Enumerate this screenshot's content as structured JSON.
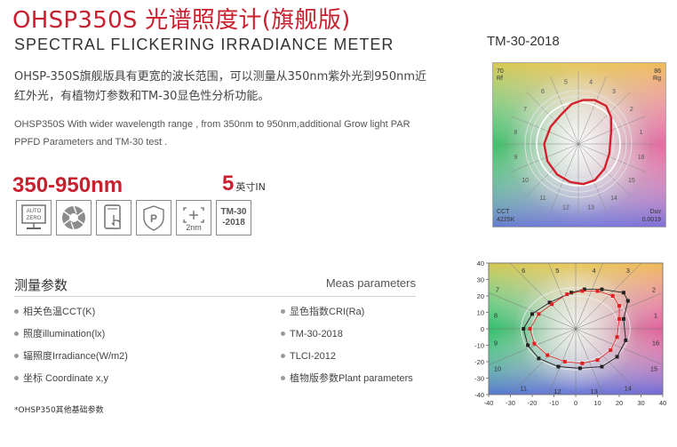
{
  "header": {
    "title": "OHSP350S 光谱照度计(旗舰版)",
    "subtitle": "SPECTRAL FLICKERING IRRADIANCE METER"
  },
  "description": {
    "cn": "OHSP-350S旗舰版具有更宽的波长范围，可以测量从350nm紫外光到950nm近红外光，有植物灯参数和TM-30显色性分析功能。",
    "en": "OHSP350S With wider wavelength range , from 350nm to 950nm,additional Grow light PAR PPFD Parameters and TM-30 test ."
  },
  "specs": {
    "range": "350-950nm",
    "screen_size": "5",
    "screen_unit": "英寸IN"
  },
  "feature_icons": [
    {
      "name": "auto-zero",
      "line1": "AUTO",
      "line2": "ZERO"
    },
    {
      "name": "aperture"
    },
    {
      "name": "phone-touch"
    },
    {
      "name": "ppfd-shield",
      "text": "P"
    },
    {
      "name": "2nm-step",
      "text": "2nm"
    },
    {
      "name": "tm30",
      "line1": "TM-30",
      "line2": "-2018"
    }
  ],
  "parameters": {
    "title": "测量参数",
    "title_en": "Meas parameters",
    "left": [
      "相关色温CCT(K)",
      "照度illumination(lx)",
      "辐照度Irradiance(W/m2)",
      "坐标 Coordinate x,y"
    ],
    "right": [
      "显色指数CRI(Ra)",
      "TM-30-2018",
      "TLCI-2012",
      "植物版参数Plant parameters"
    ]
  },
  "footnote": "*OHSP350其他基础参数",
  "tm30": {
    "heading": "TM-30-2018",
    "rf_value": "70",
    "rf_label": "Rf",
    "rg_value": "86",
    "rg_label": "Rg",
    "cct_label": "CCT",
    "cct_value": "4225K",
    "duv_label": "Duv",
    "duv_value": "0.0019",
    "hue_bins": [
      "1",
      "2",
      "3",
      "4",
      "5",
      "6",
      "7",
      "8",
      "9",
      "10",
      "11",
      "12",
      "13",
      "14",
      "15",
      "16"
    ]
  },
  "chart_data": {
    "type": "scatter",
    "title": "",
    "xlabel": "",
    "ylabel": "",
    "xlim": [
      -40,
      40
    ],
    "ylim": [
      -40,
      40
    ],
    "x_ticks": [
      -40,
      -30,
      -20,
      -10,
      0,
      10,
      20,
      30,
      40
    ],
    "y_ticks": [
      40,
      30,
      20,
      10,
      0,
      -10,
      -20,
      -30,
      -40
    ],
    "hue_bin_labels": [
      "1",
      "2",
      "3",
      "4",
      "5",
      "6",
      "7",
      "8",
      "9",
      "10",
      "11",
      "12",
      "13",
      "14",
      "15",
      "16"
    ],
    "series": [
      {
        "values": [
          [
            22,
            6
          ],
          [
            24,
            17
          ],
          [
            22,
            22
          ],
          [
            12,
            24
          ],
          [
            4,
            24
          ],
          [
            -2,
            22
          ],
          [
            -12,
            16
          ],
          [
            -20,
            9
          ],
          [
            -24,
            0
          ],
          [
            -22,
            -10
          ],
          [
            -17,
            -18
          ],
          [
            -8,
            -23
          ],
          [
            2,
            -24
          ],
          [
            12,
            -23
          ],
          [
            19,
            -17
          ],
          [
            23,
            -7
          ]
        ],
        "color": "#222222"
      },
      {
        "values": [
          [
            20,
            6
          ],
          [
            20,
            14
          ],
          [
            17,
            20
          ],
          [
            10,
            23
          ],
          [
            3,
            23
          ],
          [
            -4,
            21
          ],
          [
            -11,
            15
          ],
          [
            -17,
            9
          ],
          [
            -21,
            0
          ],
          [
            -19,
            -9
          ],
          [
            -13,
            -16
          ],
          [
            -5,
            -20
          ],
          [
            3,
            -21
          ],
          [
            10,
            -19
          ],
          [
            16,
            -13
          ],
          [
            19,
            -5
          ]
        ],
        "color": "#e02020"
      }
    ]
  }
}
